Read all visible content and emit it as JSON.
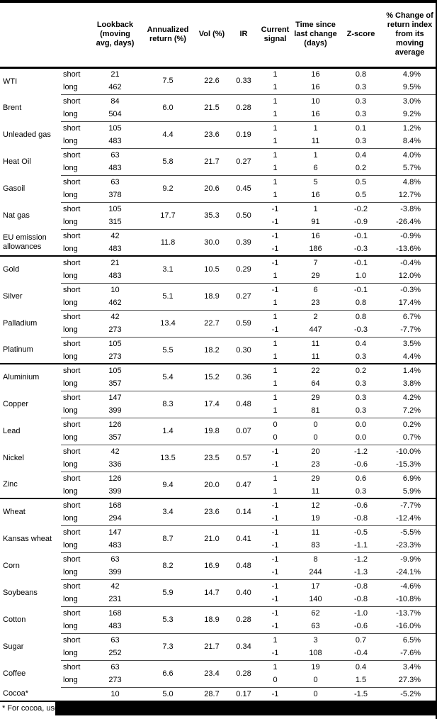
{
  "colors": {
    "background": "#ffffff",
    "text": "#000000",
    "thick_line": "#000000",
    "thin_line": "#4a4a4a",
    "redaction": "#000000"
  },
  "table": {
    "headers": {
      "commodity": "",
      "leg": "",
      "lookback": "Lookback\n(moving\navg, days)",
      "annualized": "Annualized\nreturn (%)",
      "vol": "Vol (%)",
      "ir": "IR",
      "signal": "Current\nsignal",
      "time_since": "Time since\nlast change\n(days)",
      "zscore": "Z-score",
      "pct_change": "% Change of\nreturn index\nfrom its\nmoving\naverage"
    },
    "commodities": [
      {
        "name": "WTI",
        "section_start": false,
        "annualized": "7.5",
        "vol": "22.6",
        "ir": "0.33",
        "rows": [
          {
            "leg": "short",
            "lookback": "21",
            "signal": "1",
            "time": "16",
            "zscore": "0.8",
            "pct": "4.9%"
          },
          {
            "leg": "long",
            "lookback": "462",
            "signal": "1",
            "time": "16",
            "zscore": "0.3",
            "pct": "9.5%"
          }
        ]
      },
      {
        "name": "Brent",
        "section_start": false,
        "annualized": "6.0",
        "vol": "21.5",
        "ir": "0.28",
        "rows": [
          {
            "leg": "short",
            "lookback": "84",
            "signal": "1",
            "time": "10",
            "zscore": "0.3",
            "pct": "3.0%"
          },
          {
            "leg": "long",
            "lookback": "504",
            "signal": "1",
            "time": "16",
            "zscore": "0.3",
            "pct": "9.2%"
          }
        ]
      },
      {
        "name": "Unleaded gas",
        "section_start": false,
        "annualized": "4.4",
        "vol": "23.6",
        "ir": "0.19",
        "rows": [
          {
            "leg": "short",
            "lookback": "105",
            "signal": "1",
            "time": "1",
            "zscore": "0.1",
            "pct": "1.2%"
          },
          {
            "leg": "long",
            "lookback": "483",
            "signal": "1",
            "time": "11",
            "zscore": "0.3",
            "pct": "8.4%"
          }
        ]
      },
      {
        "name": "Heat Oil",
        "section_start": false,
        "annualized": "5.8",
        "vol": "21.7",
        "ir": "0.27",
        "rows": [
          {
            "leg": "short",
            "lookback": "63",
            "signal": "1",
            "time": "1",
            "zscore": "0.4",
            "pct": "4.0%"
          },
          {
            "leg": "long",
            "lookback": "483",
            "signal": "1",
            "time": "6",
            "zscore": "0.2",
            "pct": "5.7%"
          }
        ]
      },
      {
        "name": "Gasoil",
        "section_start": false,
        "annualized": "9.2",
        "vol": "20.6",
        "ir": "0.45",
        "rows": [
          {
            "leg": "short",
            "lookback": "63",
            "signal": "1",
            "time": "5",
            "zscore": "0.5",
            "pct": "4.8%"
          },
          {
            "leg": "long",
            "lookback": "378",
            "signal": "1",
            "time": "16",
            "zscore": "0.5",
            "pct": "12.7%"
          }
        ]
      },
      {
        "name": "Nat gas",
        "section_start": false,
        "annualized": "17.7",
        "vol": "35.3",
        "ir": "0.50",
        "rows": [
          {
            "leg": "short",
            "lookback": "105",
            "signal": "-1",
            "time": "1",
            "zscore": "-0.2",
            "pct": "-3.8%"
          },
          {
            "leg": "long",
            "lookback": "315",
            "signal": "-1",
            "time": "91",
            "zscore": "-0.9",
            "pct": "-26.4%"
          }
        ]
      },
      {
        "name": "EU emission allowances",
        "section_start": false,
        "annualized": "11.8",
        "vol": "30.0",
        "ir": "0.39",
        "rows": [
          {
            "leg": "short",
            "lookback": "42",
            "signal": "-1",
            "time": "16",
            "zscore": "-0.1",
            "pct": "-0.9%"
          },
          {
            "leg": "long",
            "lookback": "483",
            "signal": "-1",
            "time": "186",
            "zscore": "-0.3",
            "pct": "-13.6%"
          }
        ]
      },
      {
        "name": "Gold",
        "section_start": true,
        "annualized": "3.1",
        "vol": "10.5",
        "ir": "0.29",
        "rows": [
          {
            "leg": "short",
            "lookback": "21",
            "signal": "-1",
            "time": "7",
            "zscore": "-0.1",
            "pct": "-0.4%"
          },
          {
            "leg": "long",
            "lookback": "483",
            "signal": "1",
            "time": "29",
            "zscore": "1.0",
            "pct": "12.0%"
          }
        ]
      },
      {
        "name": "Silver",
        "section_start": false,
        "annualized": "5.1",
        "vol": "18.9",
        "ir": "0.27",
        "rows": [
          {
            "leg": "short",
            "lookback": "10",
            "signal": "-1",
            "time": "6",
            "zscore": "-0.1",
            "pct": "-0.3%"
          },
          {
            "leg": "long",
            "lookback": "462",
            "signal": "1",
            "time": "23",
            "zscore": "0.8",
            "pct": "17.4%"
          }
        ]
      },
      {
        "name": "Palladium",
        "section_start": false,
        "annualized": "13.4",
        "vol": "22.7",
        "ir": "0.59",
        "rows": [
          {
            "leg": "short",
            "lookback": "42",
            "signal": "1",
            "time": "2",
            "zscore": "0.8",
            "pct": "6.7%"
          },
          {
            "leg": "long",
            "lookback": "273",
            "signal": "-1",
            "time": "447",
            "zscore": "-0.3",
            "pct": "-7.7%"
          }
        ]
      },
      {
        "name": "Platinum",
        "section_start": false,
        "annualized": "5.5",
        "vol": "18.2",
        "ir": "0.30",
        "rows": [
          {
            "leg": "short",
            "lookback": "105",
            "signal": "1",
            "time": "11",
            "zscore": "0.4",
            "pct": "3.5%"
          },
          {
            "leg": "long",
            "lookback": "273",
            "signal": "1",
            "time": "11",
            "zscore": "0.3",
            "pct": "4.4%"
          }
        ]
      },
      {
        "name": "Aluminium",
        "section_start": true,
        "annualized": "5.4",
        "vol": "15.2",
        "ir": "0.36",
        "rows": [
          {
            "leg": "short",
            "lookback": "105",
            "signal": "1",
            "time": "22",
            "zscore": "0.2",
            "pct": "1.4%"
          },
          {
            "leg": "long",
            "lookback": "357",
            "signal": "1",
            "time": "64",
            "zscore": "0.3",
            "pct": "3.8%"
          }
        ]
      },
      {
        "name": "Copper",
        "section_start": false,
        "annualized": "8.3",
        "vol": "17.4",
        "ir": "0.48",
        "rows": [
          {
            "leg": "short",
            "lookback": "147",
            "signal": "1",
            "time": "29",
            "zscore": "0.3",
            "pct": "4.2%"
          },
          {
            "leg": "long",
            "lookback": "399",
            "signal": "1",
            "time": "81",
            "zscore": "0.3",
            "pct": "7.2%"
          }
        ]
      },
      {
        "name": "Lead",
        "section_start": false,
        "annualized": "1.4",
        "vol": "19.8",
        "ir": "0.07",
        "rows": [
          {
            "leg": "short",
            "lookback": "126",
            "signal": "0",
            "time": "0",
            "zscore": "0.0",
            "pct": "0.2%"
          },
          {
            "leg": "long",
            "lookback": "357",
            "signal": "0",
            "time": "0",
            "zscore": "0.0",
            "pct": "0.7%"
          }
        ]
      },
      {
        "name": "Nickel",
        "section_start": false,
        "annualized": "13.5",
        "vol": "23.5",
        "ir": "0.57",
        "rows": [
          {
            "leg": "short",
            "lookback": "42",
            "signal": "-1",
            "time": "20",
            "zscore": "-1.2",
            "pct": "-10.0%"
          },
          {
            "leg": "long",
            "lookback": "336",
            "signal": "-1",
            "time": "23",
            "zscore": "-0.6",
            "pct": "-15.3%"
          }
        ]
      },
      {
        "name": "Zinc",
        "section_start": false,
        "annualized": "9.4",
        "vol": "20.0",
        "ir": "0.47",
        "rows": [
          {
            "leg": "short",
            "lookback": "126",
            "signal": "1",
            "time": "29",
            "zscore": "0.6",
            "pct": "6.9%"
          },
          {
            "leg": "long",
            "lookback": "399",
            "signal": "1",
            "time": "11",
            "zscore": "0.3",
            "pct": "5.9%"
          }
        ]
      },
      {
        "name": "Wheat",
        "section_start": true,
        "annualized": "3.4",
        "vol": "23.6",
        "ir": "0.14",
        "rows": [
          {
            "leg": "short",
            "lookback": "168",
            "signal": "-1",
            "time": "12",
            "zscore": "-0.6",
            "pct": "-7.7%"
          },
          {
            "leg": "long",
            "lookback": "294",
            "signal": "-1",
            "time": "19",
            "zscore": "-0.8",
            "pct": "-12.4%"
          }
        ]
      },
      {
        "name": "Kansas wheat",
        "section_start": false,
        "annualized": "8.7",
        "vol": "21.0",
        "ir": "0.41",
        "rows": [
          {
            "leg": "short",
            "lookback": "147",
            "signal": "-1",
            "time": "11",
            "zscore": "-0.5",
            "pct": "-5.5%"
          },
          {
            "leg": "long",
            "lookback": "483",
            "signal": "-1",
            "time": "83",
            "zscore": "-1.1",
            "pct": "-23.3%"
          }
        ]
      },
      {
        "name": "Corn",
        "section_start": false,
        "annualized": "8.2",
        "vol": "16.9",
        "ir": "0.48",
        "rows": [
          {
            "leg": "short",
            "lookback": "63",
            "signal": "-1",
            "time": "8",
            "zscore": "-1.2",
            "pct": "-9.9%"
          },
          {
            "leg": "long",
            "lookback": "399",
            "signal": "-1",
            "time": "244",
            "zscore": "-1.3",
            "pct": "-24.1%"
          }
        ]
      },
      {
        "name": "Soybeans",
        "section_start": false,
        "annualized": "5.9",
        "vol": "14.7",
        "ir": "0.40",
        "rows": [
          {
            "leg": "short",
            "lookback": "42",
            "signal": "-1",
            "time": "17",
            "zscore": "-0.8",
            "pct": "-4.6%"
          },
          {
            "leg": "long",
            "lookback": "231",
            "signal": "-1",
            "time": "140",
            "zscore": "-0.8",
            "pct": "-10.8%"
          }
        ]
      },
      {
        "name": "Cotton",
        "section_start": false,
        "annualized": "5.3",
        "vol": "18.9",
        "ir": "0.28",
        "rows": [
          {
            "leg": "short",
            "lookback": "168",
            "signal": "-1",
            "time": "62",
            "zscore": "-1.0",
            "pct": "-13.7%"
          },
          {
            "leg": "long",
            "lookback": "483",
            "signal": "-1",
            "time": "63",
            "zscore": "-0.6",
            "pct": "-16.0%"
          }
        ]
      },
      {
        "name": "Sugar",
        "section_start": false,
        "annualized": "7.3",
        "vol": "21.7",
        "ir": "0.34",
        "rows": [
          {
            "leg": "short",
            "lookback": "63",
            "signal": "1",
            "time": "3",
            "zscore": "0.7",
            "pct": "6.5%"
          },
          {
            "leg": "long",
            "lookback": "252",
            "signal": "-1",
            "time": "108",
            "zscore": "-0.4",
            "pct": "-7.6%"
          }
        ]
      },
      {
        "name": "Coffee",
        "section_start": false,
        "annualized": "6.6",
        "vol": "23.4",
        "ir": "0.28",
        "rows": [
          {
            "leg": "short",
            "lookback": "63",
            "signal": "1",
            "time": "19",
            "zscore": "0.4",
            "pct": "3.4%"
          },
          {
            "leg": "long",
            "lookback": "273",
            "signal": "0",
            "time": "0",
            "zscore": "1.5",
            "pct": "27.3%"
          }
        ]
      },
      {
        "name": "Cocoa*",
        "section_start": false,
        "annualized": "5.0",
        "vol": "28.7",
        "ir": "0.17",
        "rows": [
          {
            "leg": "",
            "lookback": "10",
            "signal": "-1",
            "time": "0",
            "zscore": "-1.5",
            "pct": "-5.2%"
          }
        ]
      }
    ]
  },
  "footnote": {
    "text": "* For cocoa, uses c",
    "redacted": true
  }
}
